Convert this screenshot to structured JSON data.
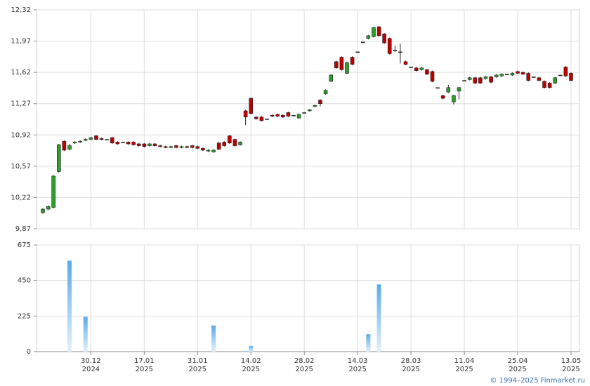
{
  "chart_data": {
    "type": "candlestick",
    "categories": [
      null,
      null,
      null,
      null,
      null,
      null,
      null,
      null,
      null,
      [
        "30.12",
        "2024"
      ],
      null,
      null,
      null,
      null,
      null,
      null,
      null,
      null,
      null,
      [
        "17.01",
        "2025"
      ],
      null,
      null,
      null,
      null,
      null,
      null,
      null,
      null,
      null,
      [
        "31.01",
        "2025"
      ],
      null,
      null,
      null,
      null,
      null,
      null,
      null,
      null,
      null,
      [
        "14.02",
        "2025"
      ],
      null,
      null,
      null,
      null,
      null,
      null,
      null,
      null,
      null,
      [
        "28.02",
        "2025"
      ],
      null,
      null,
      null,
      null,
      null,
      null,
      null,
      null,
      null,
      [
        "14.03",
        "2025"
      ],
      null,
      null,
      null,
      null,
      null,
      null,
      null,
      null,
      null,
      [
        "28.03",
        "2025"
      ],
      null,
      null,
      null,
      null,
      null,
      null,
      null,
      null,
      null,
      [
        "11.04",
        "2025"
      ],
      null,
      null,
      null,
      null,
      null,
      null,
      null,
      null,
      null,
      [
        "25.04",
        "2025"
      ],
      null,
      null,
      null,
      null,
      null,
      null,
      null,
      null,
      null,
      [
        "13.05",
        "2025"
      ]
    ],
    "open": [
      10.05,
      10.09,
      10.11,
      10.51,
      10.85,
      10.76,
      10.83,
      10.84,
      10.86,
      10.87,
      10.91,
      10.88,
      10.87,
      10.89,
      10.84,
      10.84,
      10.84,
      10.84,
      10.82,
      10.82,
      10.8,
      10.82,
      10.8,
      10.79,
      10.78,
      10.8,
      10.78,
      10.79,
      10.8,
      10.79,
      10.77,
      10.74,
      10.73,
      10.83,
      10.84,
      10.91,
      10.87,
      10.81,
      11.19,
      11.33,
      11.12,
      11.12,
      11.1,
      11.14,
      11.15,
      11.14,
      11.17,
      11.14,
      11.11,
      11.17,
      11.19,
      11.24,
      11.31,
      11.38,
      11.52,
      11.74,
      11.79,
      11.61,
      11.79,
      11.85,
      11.96,
      12.0,
      12.02,
      12.13,
      12.05,
      12.0,
      11.87,
      11.85,
      11.74,
      11.68,
      11.67,
      11.65,
      11.65,
      11.63,
      11.45,
      11.36,
      11.4,
      11.29,
      11.41,
      11.53,
      11.54,
      11.56,
      11.56,
      11.55,
      11.57,
      11.57,
      11.58,
      11.6,
      11.59,
      11.63,
      11.62,
      11.61,
      11.57,
      11.56,
      11.52,
      11.5,
      11.5,
      11.59,
      11.68,
      11.61
    ],
    "high": [
      10.1,
      10.13,
      10.47,
      10.82,
      10.86,
      10.82,
      10.85,
      10.86,
      10.88,
      10.9,
      10.92,
      10.89,
      10.87,
      10.9,
      10.85,
      10.84,
      10.85,
      10.85,
      10.83,
      10.83,
      10.83,
      10.83,
      10.81,
      10.8,
      10.8,
      10.81,
      10.8,
      10.8,
      10.81,
      10.8,
      10.78,
      10.76,
      10.76,
      10.84,
      10.85,
      10.92,
      10.88,
      10.85,
      11.2,
      11.34,
      11.13,
      11.13,
      11.1,
      11.15,
      11.16,
      11.15,
      11.18,
      11.14,
      11.16,
      11.17,
      11.21,
      11.26,
      11.32,
      11.43,
      11.6,
      11.75,
      11.8,
      11.74,
      11.8,
      11.85,
      11.96,
      12.04,
      12.13,
      12.14,
      12.06,
      12.01,
      11.92,
      11.94,
      11.75,
      11.68,
      11.68,
      11.68,
      11.66,
      11.64,
      11.45,
      11.37,
      11.48,
      11.37,
      11.46,
      11.53,
      11.57,
      11.57,
      11.57,
      11.58,
      11.58,
      11.6,
      11.61,
      11.6,
      11.62,
      11.64,
      11.63,
      11.62,
      11.57,
      11.57,
      11.53,
      11.51,
      11.57,
      11.59,
      11.69,
      11.62
    ],
    "low": [
      10.04,
      10.08,
      10.1,
      10.5,
      10.74,
      10.75,
      10.82,
      10.83,
      10.85,
      10.86,
      10.86,
      10.86,
      10.87,
      10.82,
      10.81,
      10.84,
      10.81,
      10.8,
      10.79,
      10.78,
      10.79,
      10.79,
      10.78,
      10.77,
      10.77,
      10.77,
      10.77,
      10.77,
      10.77,
      10.76,
      10.74,
      10.73,
      10.72,
      10.75,
      10.79,
      10.82,
      10.79,
      10.8,
      11.03,
      11.15,
      11.09,
      11.07,
      11.1,
      11.12,
      11.12,
      11.11,
      11.12,
      11.14,
      11.1,
      11.17,
      11.18,
      11.23,
      11.24,
      11.37,
      11.51,
      11.66,
      11.64,
      11.6,
      11.7,
      11.85,
      11.96,
      11.99,
      12.01,
      12.02,
      11.94,
      11.82,
      11.85,
      11.72,
      11.7,
      11.68,
      11.63,
      11.64,
      11.59,
      11.51,
      11.45,
      11.32,
      11.39,
      11.26,
      11.32,
      11.53,
      11.53,
      11.49,
      11.49,
      11.54,
      11.5,
      11.56,
      11.57,
      11.6,
      11.58,
      11.6,
      11.59,
      11.52,
      11.57,
      11.52,
      11.44,
      11.44,
      11.49,
      11.59,
      11.57,
      11.52
    ],
    "close": [
      10.09,
      10.12,
      10.46,
      10.81,
      10.75,
      10.8,
      10.84,
      10.85,
      10.87,
      10.89,
      10.87,
      10.87,
      10.87,
      10.83,
      10.82,
      10.84,
      10.82,
      10.81,
      10.8,
      10.79,
      10.82,
      10.8,
      10.79,
      10.78,
      10.79,
      10.78,
      10.79,
      10.78,
      10.78,
      10.77,
      10.75,
      10.75,
      10.75,
      10.76,
      10.8,
      10.83,
      10.8,
      10.84,
      11.12,
      11.16,
      11.1,
      11.08,
      11.1,
      11.13,
      11.13,
      11.12,
      11.13,
      11.14,
      11.15,
      11.17,
      11.2,
      11.25,
      11.27,
      11.42,
      11.59,
      11.67,
      11.65,
      11.73,
      11.71,
      11.85,
      11.96,
      12.03,
      12.12,
      12.03,
      11.95,
      11.83,
      11.87,
      11.85,
      11.71,
      11.68,
      11.64,
      11.67,
      11.6,
      11.52,
      11.45,
      11.33,
      11.45,
      11.36,
      11.45,
      11.53,
      11.56,
      11.5,
      11.5,
      11.57,
      11.51,
      11.59,
      11.6,
      11.6,
      11.61,
      11.61,
      11.6,
      11.53,
      11.57,
      11.53,
      11.45,
      11.45,
      11.56,
      11.59,
      11.58,
      11.53
    ],
    "volume": [
      0,
      0,
      0,
      0,
      0,
      575,
      0,
      0,
      220,
      0,
      0,
      0,
      0,
      0,
      0,
      0,
      0,
      0,
      0,
      0,
      0,
      0,
      0,
      0,
      0,
      0,
      0,
      0,
      0,
      0,
      0,
      0,
      165,
      0,
      0,
      0,
      0,
      0,
      5,
      35,
      0,
      0,
      0,
      0,
      0,
      0,
      0,
      0,
      0,
      0,
      0,
      0,
      0,
      0,
      0,
      0,
      0,
      0,
      0,
      0,
      0,
      110,
      0,
      425,
      0,
      0,
      0,
      0,
      0,
      0,
      0,
      0,
      0,
      0,
      0,
      0,
      0,
      0,
      0,
      0,
      0,
      0,
      0,
      0,
      0,
      0,
      0,
      0,
      0,
      3,
      0,
      0,
      0,
      0,
      0,
      0,
      0,
      0,
      0,
      0
    ],
    "up_color": "#2e9e2e",
    "down_color": "#c00000",
    "volume_color": "#7cbcec",
    "ylim": [
      9.87,
      12.32
    ],
    "yticks": [
      {
        "value": 9.87,
        "label": "9,87"
      },
      {
        "value": 10.22,
        "label": "10,22"
      },
      {
        "value": 10.57,
        "label": "10,57"
      },
      {
        "value": 10.92,
        "label": "10,92"
      },
      {
        "value": 11.27,
        "label": "11,27"
      },
      {
        "value": 11.62,
        "label": "11,62"
      },
      {
        "value": 11.97,
        "label": "11,97"
      },
      {
        "value": 12.32,
        "label": "12,32"
      }
    ],
    "volume_ylim": [
      0,
      675
    ],
    "volume_yticks": [
      0,
      225,
      450,
      675
    ],
    "grid": true,
    "credit": "© 1994–2025 Finmarket.ru"
  }
}
